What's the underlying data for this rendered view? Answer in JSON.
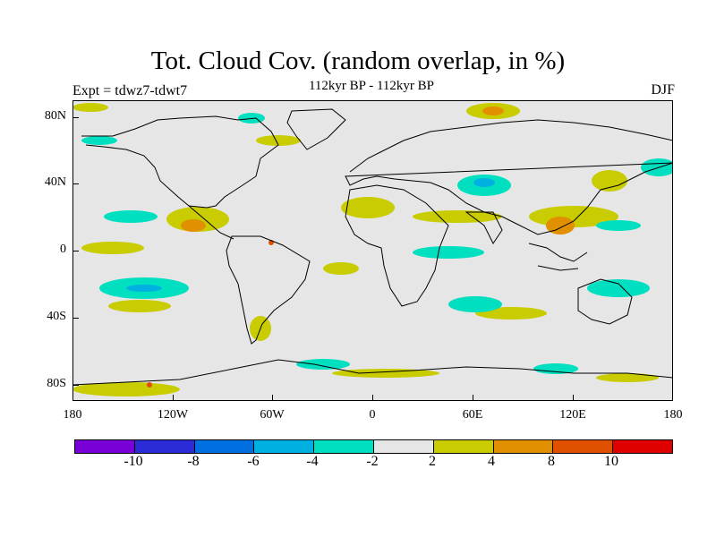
{
  "title": "Tot. Cloud Cov. (random overlap, in %)",
  "subtitle": "112kyr BP - 112kyr BP",
  "experiment": "Expt = tdwz7-tdwt7",
  "season": "DJF",
  "map": {
    "projection": "cylindrical equidistant",
    "lon_range": [
      -180,
      180
    ],
    "lat_range": [
      -90,
      90
    ],
    "x_ticks": [
      "180",
      "120W",
      "60W",
      "0",
      "60E",
      "120E",
      "180"
    ],
    "y_ticks": [
      "80N",
      "40N",
      "0",
      "40S",
      "80S"
    ],
    "background_color": "#e6e6e6",
    "coastline_color": "#000000"
  },
  "colorbar": {
    "colors": [
      "#7a00d8",
      "#2b2bd8",
      "#0070e0",
      "#00b0e0",
      "#00e0c0",
      "#e6e6e6",
      "#c8cc00",
      "#e09000",
      "#e05000",
      "#e00000"
    ],
    "labels": [
      "-10",
      "-8",
      "-6",
      "-4",
      "-2",
      "2",
      "4",
      "8",
      "10"
    ]
  }
}
